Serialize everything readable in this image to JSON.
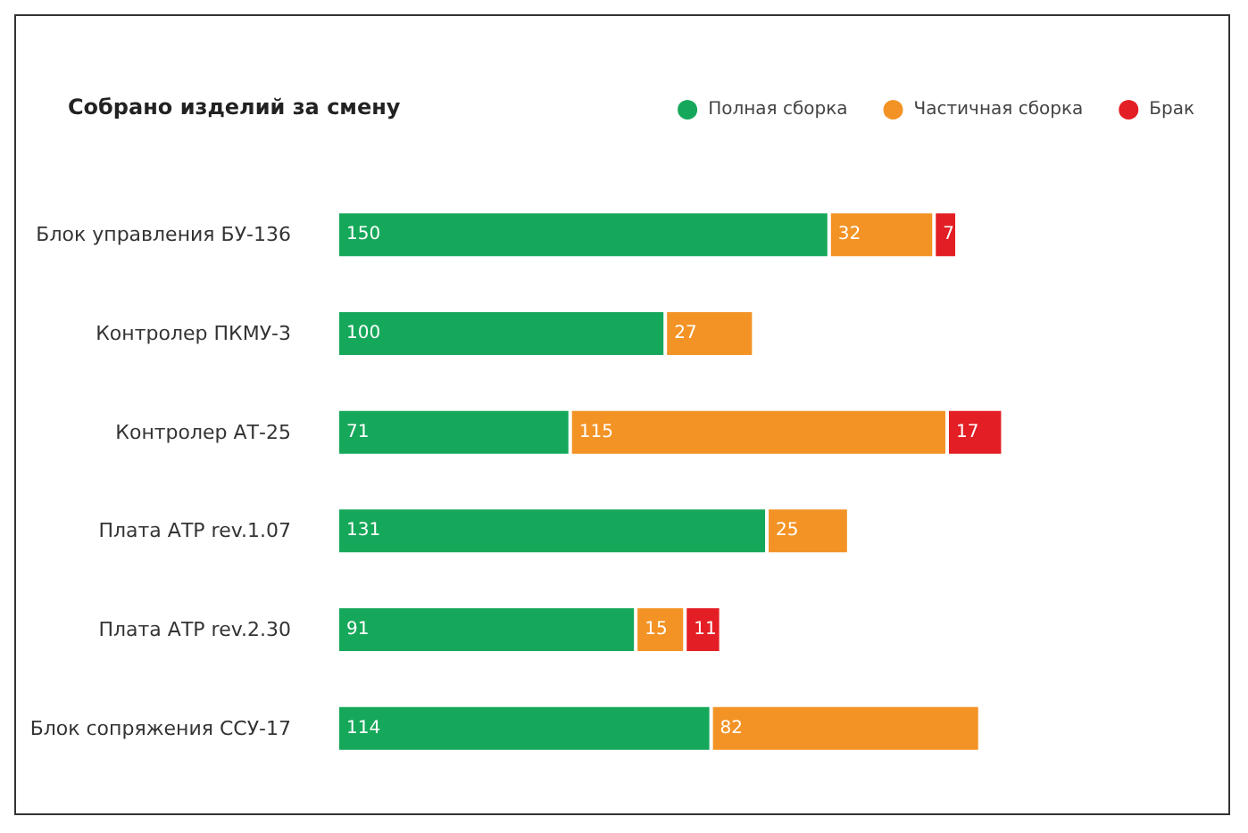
{
  "chart_data": {
    "type": "bar",
    "orientation": "horizontal",
    "stacked": true,
    "title": "Собрано изделий за смену",
    "categories": [
      "Блок управления БУ-136",
      "Контролер ПКМУ-3",
      "Контролер АТ-25",
      "Плата АТР rev.1.07",
      "Плата АТР rev.2.30",
      "Блок сопряжения ССУ-17"
    ],
    "series": [
      {
        "name": "Полная сборка",
        "color": "#16a85a",
        "values": [
          150,
          100,
          71,
          131,
          91,
          114
        ]
      },
      {
        "name": "Частичная сборка",
        "color": "#f39325",
        "values": [
          32,
          27,
          115,
          25,
          15,
          82
        ]
      },
      {
        "name": "Брак",
        "color": "#e31e24",
        "values": [
          7,
          null,
          17,
          null,
          11,
          null
        ]
      }
    ],
    "data_labels": true,
    "legend": "top right"
  }
}
